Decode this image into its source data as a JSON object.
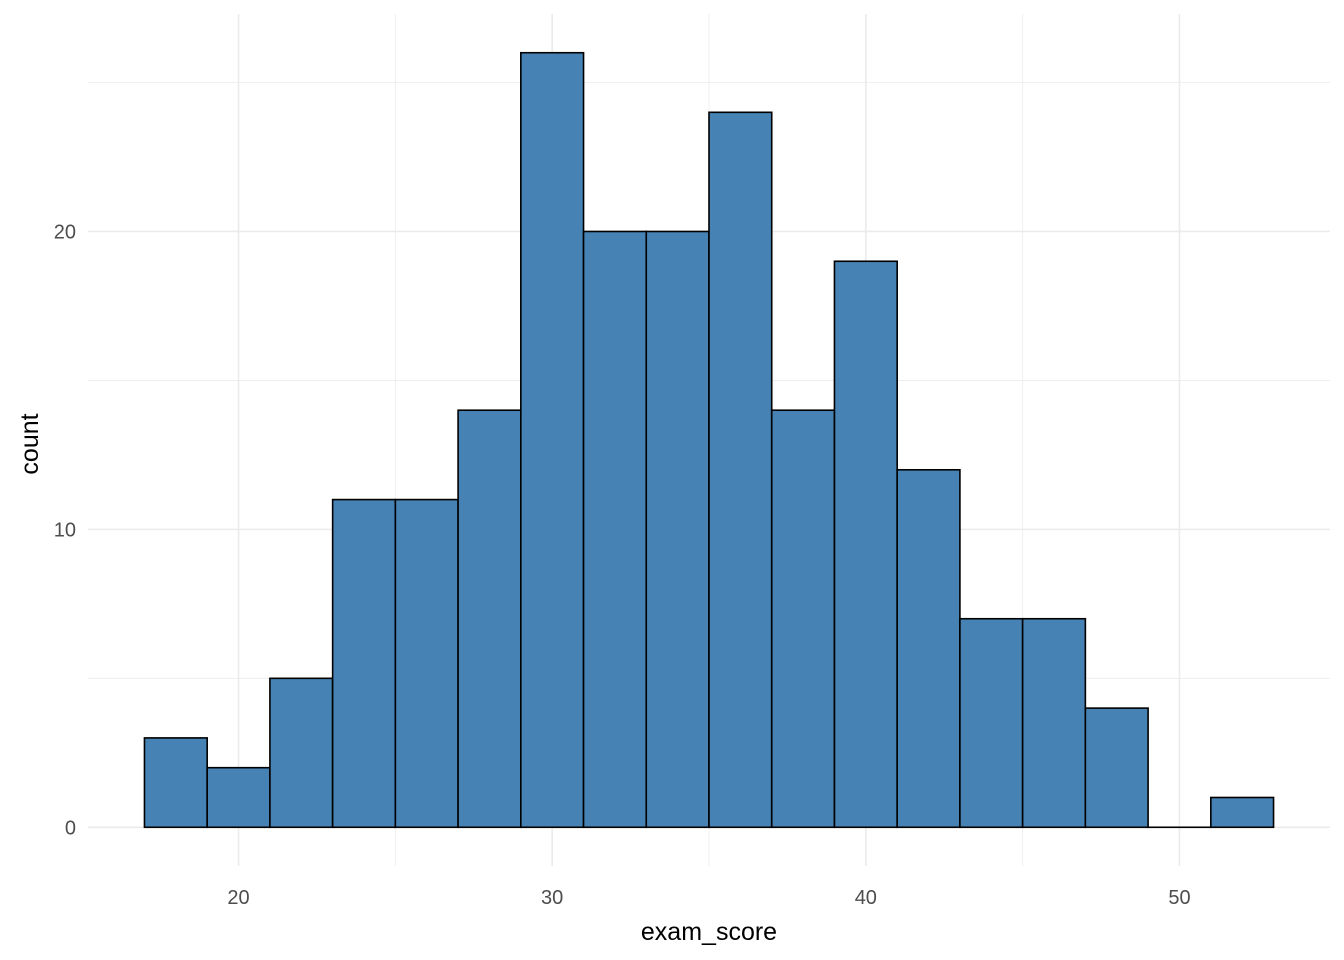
{
  "chart_data": {
    "type": "bar",
    "subtype": "histogram",
    "xlabel": "exam_score",
    "ylabel": "count",
    "bin_width": 2,
    "bins": [
      {
        "start": 17,
        "end": 19,
        "count": 3
      },
      {
        "start": 19,
        "end": 21,
        "count": 2
      },
      {
        "start": 21,
        "end": 23,
        "count": 5
      },
      {
        "start": 23,
        "end": 25,
        "count": 11
      },
      {
        "start": 25,
        "end": 27,
        "count": 11
      },
      {
        "start": 27,
        "end": 29,
        "count": 14
      },
      {
        "start": 29,
        "end": 31,
        "count": 26
      },
      {
        "start": 31,
        "end": 33,
        "count": 20
      },
      {
        "start": 33,
        "end": 35,
        "count": 20
      },
      {
        "start": 35,
        "end": 37,
        "count": 24
      },
      {
        "start": 37,
        "end": 39,
        "count": 14
      },
      {
        "start": 39,
        "end": 41,
        "count": 19
      },
      {
        "start": 41,
        "end": 43,
        "count": 12
      },
      {
        "start": 43,
        "end": 45,
        "count": 7
      },
      {
        "start": 45,
        "end": 47,
        "count": 7
      },
      {
        "start": 47,
        "end": 49,
        "count": 4
      },
      {
        "start": 49,
        "end": 51,
        "count": 0
      },
      {
        "start": 51,
        "end": 53,
        "count": 1
      }
    ],
    "xlim": [
      15.2,
      54.8
    ],
    "ylim": [
      -1.3,
      27.3
    ],
    "x_ticks": [
      20,
      30,
      40,
      50
    ],
    "x_minor_ticks": [
      25,
      35,
      45
    ],
    "y_ticks": [
      0,
      10,
      20
    ],
    "y_minor_ticks": [
      5,
      15,
      25
    ],
    "grid": true,
    "bar_fill": "#4682b4",
    "bar_stroke": "#000000",
    "grid_color": "#ebebeb"
  }
}
